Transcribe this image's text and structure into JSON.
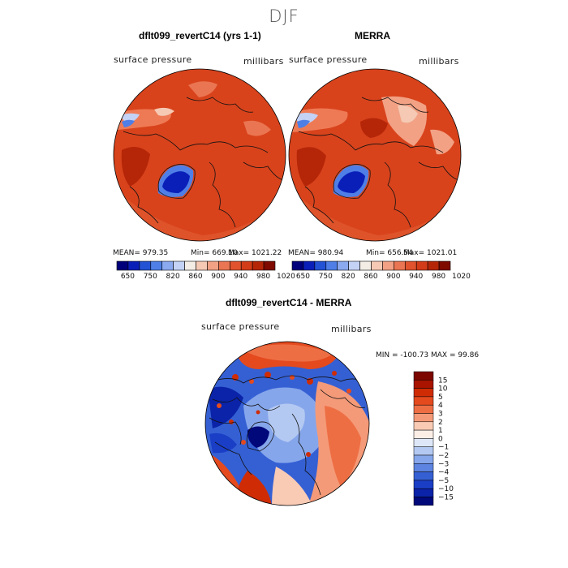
{
  "figure": {
    "season": "DJF",
    "map_label": "surface pressure",
    "unit_label": "millibars"
  },
  "chart_data": [
    {
      "type": "heatmap",
      "title": "dflt099_revertC14 (yrs 1-1)",
      "variable": "surface pressure",
      "units": "millibars",
      "projection": "polar-stereographic-north",
      "mean_text": "MEAN= 979.35",
      "min_text": "Min= 669.10",
      "max_text": "Max= 1021.22",
      "stats": {
        "mean": 979.35,
        "min": 669.1,
        "max": 1021.22
      },
      "colorbar_levels": [
        "650",
        "750",
        "820",
        "860",
        "900",
        "940",
        "980",
        "1020"
      ]
    },
    {
      "type": "heatmap",
      "title": "MERRA",
      "variable": "surface pressure",
      "units": "millibars",
      "projection": "polar-stereographic-north",
      "mean_text": "MEAN= 980.94",
      "min_text": "Min= 656.54",
      "max_text": "Max= 1021.01",
      "stats": {
        "mean": 980.94,
        "min": 656.54,
        "max": 1021.01
      },
      "colorbar_levels": [
        "650",
        "750",
        "820",
        "860",
        "900",
        "940",
        "980",
        "1020"
      ]
    },
    {
      "type": "heatmap",
      "title": "dflt099_revertC14 - MERRA",
      "variable": "surface pressure",
      "units": "millibars",
      "projection": "polar-stereographic-north",
      "minmax_text": "MIN = -100.73 MAX =  99.86",
      "stats": {
        "min": -100.73,
        "max": 99.86
      },
      "colorbar_levels": [
        "15",
        "10",
        "5",
        "4",
        "3",
        "2",
        "1",
        "0",
        "−1",
        "−2",
        "−3",
        "−4",
        "−5",
        "−10",
        "−15"
      ]
    }
  ],
  "colors": {
    "abs_scale": [
      "#00007a",
      "#0a1fb8",
      "#2352d4",
      "#4f7fe6",
      "#8aa9ef",
      "#c3d2f5",
      "#f4ede6",
      "#f5c9b4",
      "#f2a184",
      "#ea7552",
      "#e0532c",
      "#d33c18",
      "#b52608",
      "#7e0a00"
    ],
    "diff_scale": [
      "#7c0600",
      "#a81400",
      "#cf2c06",
      "#e44a1e",
      "#ee6e44",
      "#f49a78",
      "#f9cab4",
      "#fbeee6",
      "#dde7f8",
      "#b4c9f2",
      "#86a6eb",
      "#5c84e0",
      "#3560d4",
      "#1a3ec6",
      "#0a23a8",
      "#00087a"
    ],
    "land_outline": "#111111"
  }
}
